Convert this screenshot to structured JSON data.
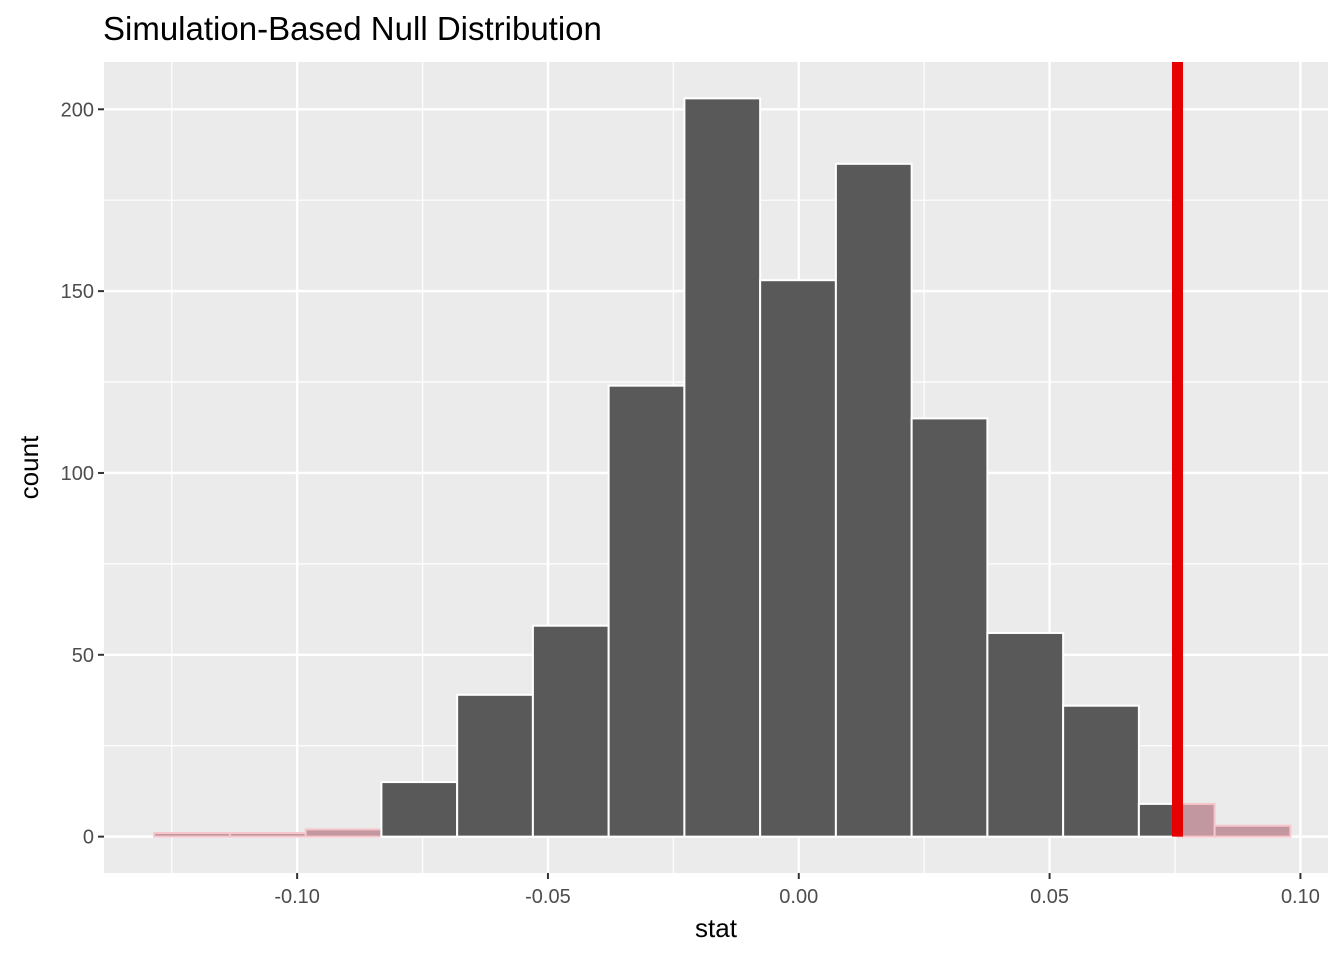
{
  "chart_data": {
    "type": "bar",
    "title": "Simulation-Based Null Distribution",
    "xlabel": "stat",
    "ylabel": "count",
    "xlim": [
      -0.1385,
      0.1055
    ],
    "ylim": [
      -10,
      213
    ],
    "x_ticks": [
      -0.1,
      -0.05,
      0.0,
      0.05,
      0.1
    ],
    "x_tick_labels": [
      "-0.10",
      "-0.05",
      "0.00",
      "0.05",
      "0.10"
    ],
    "y_ticks": [
      0,
      50,
      100,
      150,
      200
    ],
    "y_tick_labels": [
      "0",
      "50",
      "100",
      "150",
      "200"
    ],
    "bins": [
      {
        "x0": -0.1285,
        "x1": -0.1134,
        "count": 1,
        "shaded": true
      },
      {
        "x0": -0.1134,
        "x1": -0.0983,
        "count": 1,
        "shaded": true
      },
      {
        "x0": -0.0983,
        "x1": -0.0832,
        "count": 2,
        "shaded": true
      },
      {
        "x0": -0.0832,
        "x1": -0.0681,
        "count": 15,
        "shaded": false
      },
      {
        "x0": -0.0681,
        "x1": -0.053,
        "count": 39,
        "shaded": false
      },
      {
        "x0": -0.053,
        "x1": -0.0379,
        "count": 58,
        "shaded": false
      },
      {
        "x0": -0.0379,
        "x1": -0.0228,
        "count": 124,
        "shaded": false
      },
      {
        "x0": -0.0228,
        "x1": -0.0077,
        "count": 203,
        "shaded": false
      },
      {
        "x0": -0.0077,
        "x1": 0.0074,
        "count": 153,
        "shaded": false
      },
      {
        "x0": 0.0074,
        "x1": 0.0225,
        "count": 185,
        "shaded": false
      },
      {
        "x0": 0.0225,
        "x1": 0.0376,
        "count": 115,
        "shaded": false
      },
      {
        "x0": 0.0376,
        "x1": 0.0527,
        "count": 56,
        "shaded": false
      },
      {
        "x0": 0.0527,
        "x1": 0.0678,
        "count": 36,
        "shaded": false
      },
      {
        "x0": 0.0678,
        "x1": 0.0829,
        "count": 9,
        "shaded": false,
        "shaded_from": 0.0755
      },
      {
        "x0": 0.0829,
        "x1": 0.098,
        "count": 3,
        "shaded": true
      }
    ],
    "observed_stat": 0.0755,
    "colors": {
      "panel_bg": "#ebebeb",
      "grid": "#ffffff",
      "bar_fill": "#595959",
      "bar_outline": "#ffffff",
      "shade_fill": "#c2979f",
      "shade_outline": "#f7c6cc",
      "obs_line": "#e60000"
    },
    "grid": true,
    "legend": "none"
  }
}
